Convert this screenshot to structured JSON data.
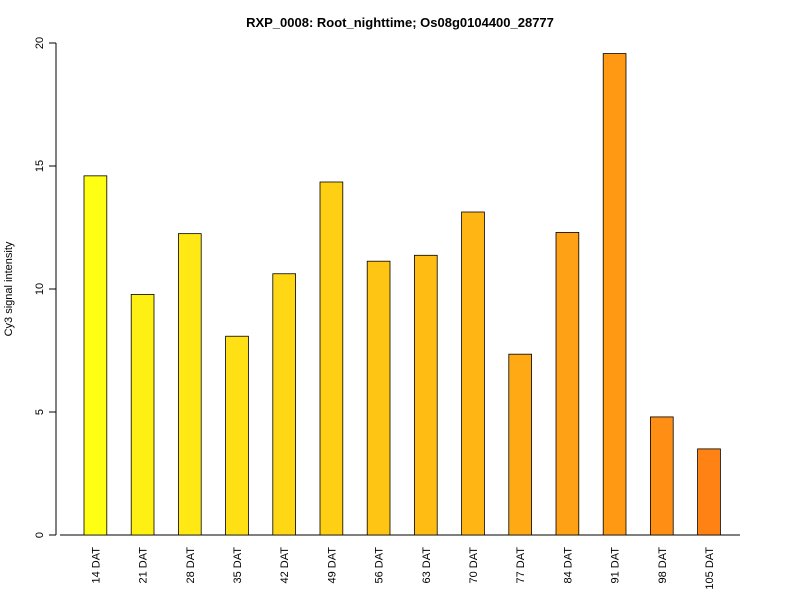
{
  "chart_data": {
    "type": "bar",
    "title": "RXP_0008: Root_nighttime; Os08g0104400_28777",
    "xlabel": "",
    "ylabel": "Cy3 signal intensity",
    "ylim": [
      0,
      20
    ],
    "yticks": [
      0,
      5,
      10,
      15,
      20
    ],
    "grid": false,
    "categories": [
      "14 DAT",
      "21 DAT",
      "28 DAT",
      "35 DAT",
      "42 DAT",
      "49 DAT",
      "56 DAT",
      "63 DAT",
      "70 DAT",
      "77 DAT",
      "84 DAT",
      "91 DAT",
      "98 DAT",
      "105 DAT"
    ],
    "values": [
      14.6,
      9.78,
      12.25,
      8.08,
      10.62,
      14.35,
      11.13,
      11.37,
      13.13,
      7.35,
      12.3,
      19.57,
      4.8,
      3.5
    ],
    "colors": [
      "#FFFF14",
      "#FFF014",
      "#FFE814",
      "#FFE014",
      "#FFD714",
      "#FFCF14",
      "#FFC514",
      "#FFBD14",
      "#FFB514",
      "#FFAA14",
      "#FFA114",
      "#FF9914",
      "#FF8E14",
      "#FF8314"
    ]
  }
}
